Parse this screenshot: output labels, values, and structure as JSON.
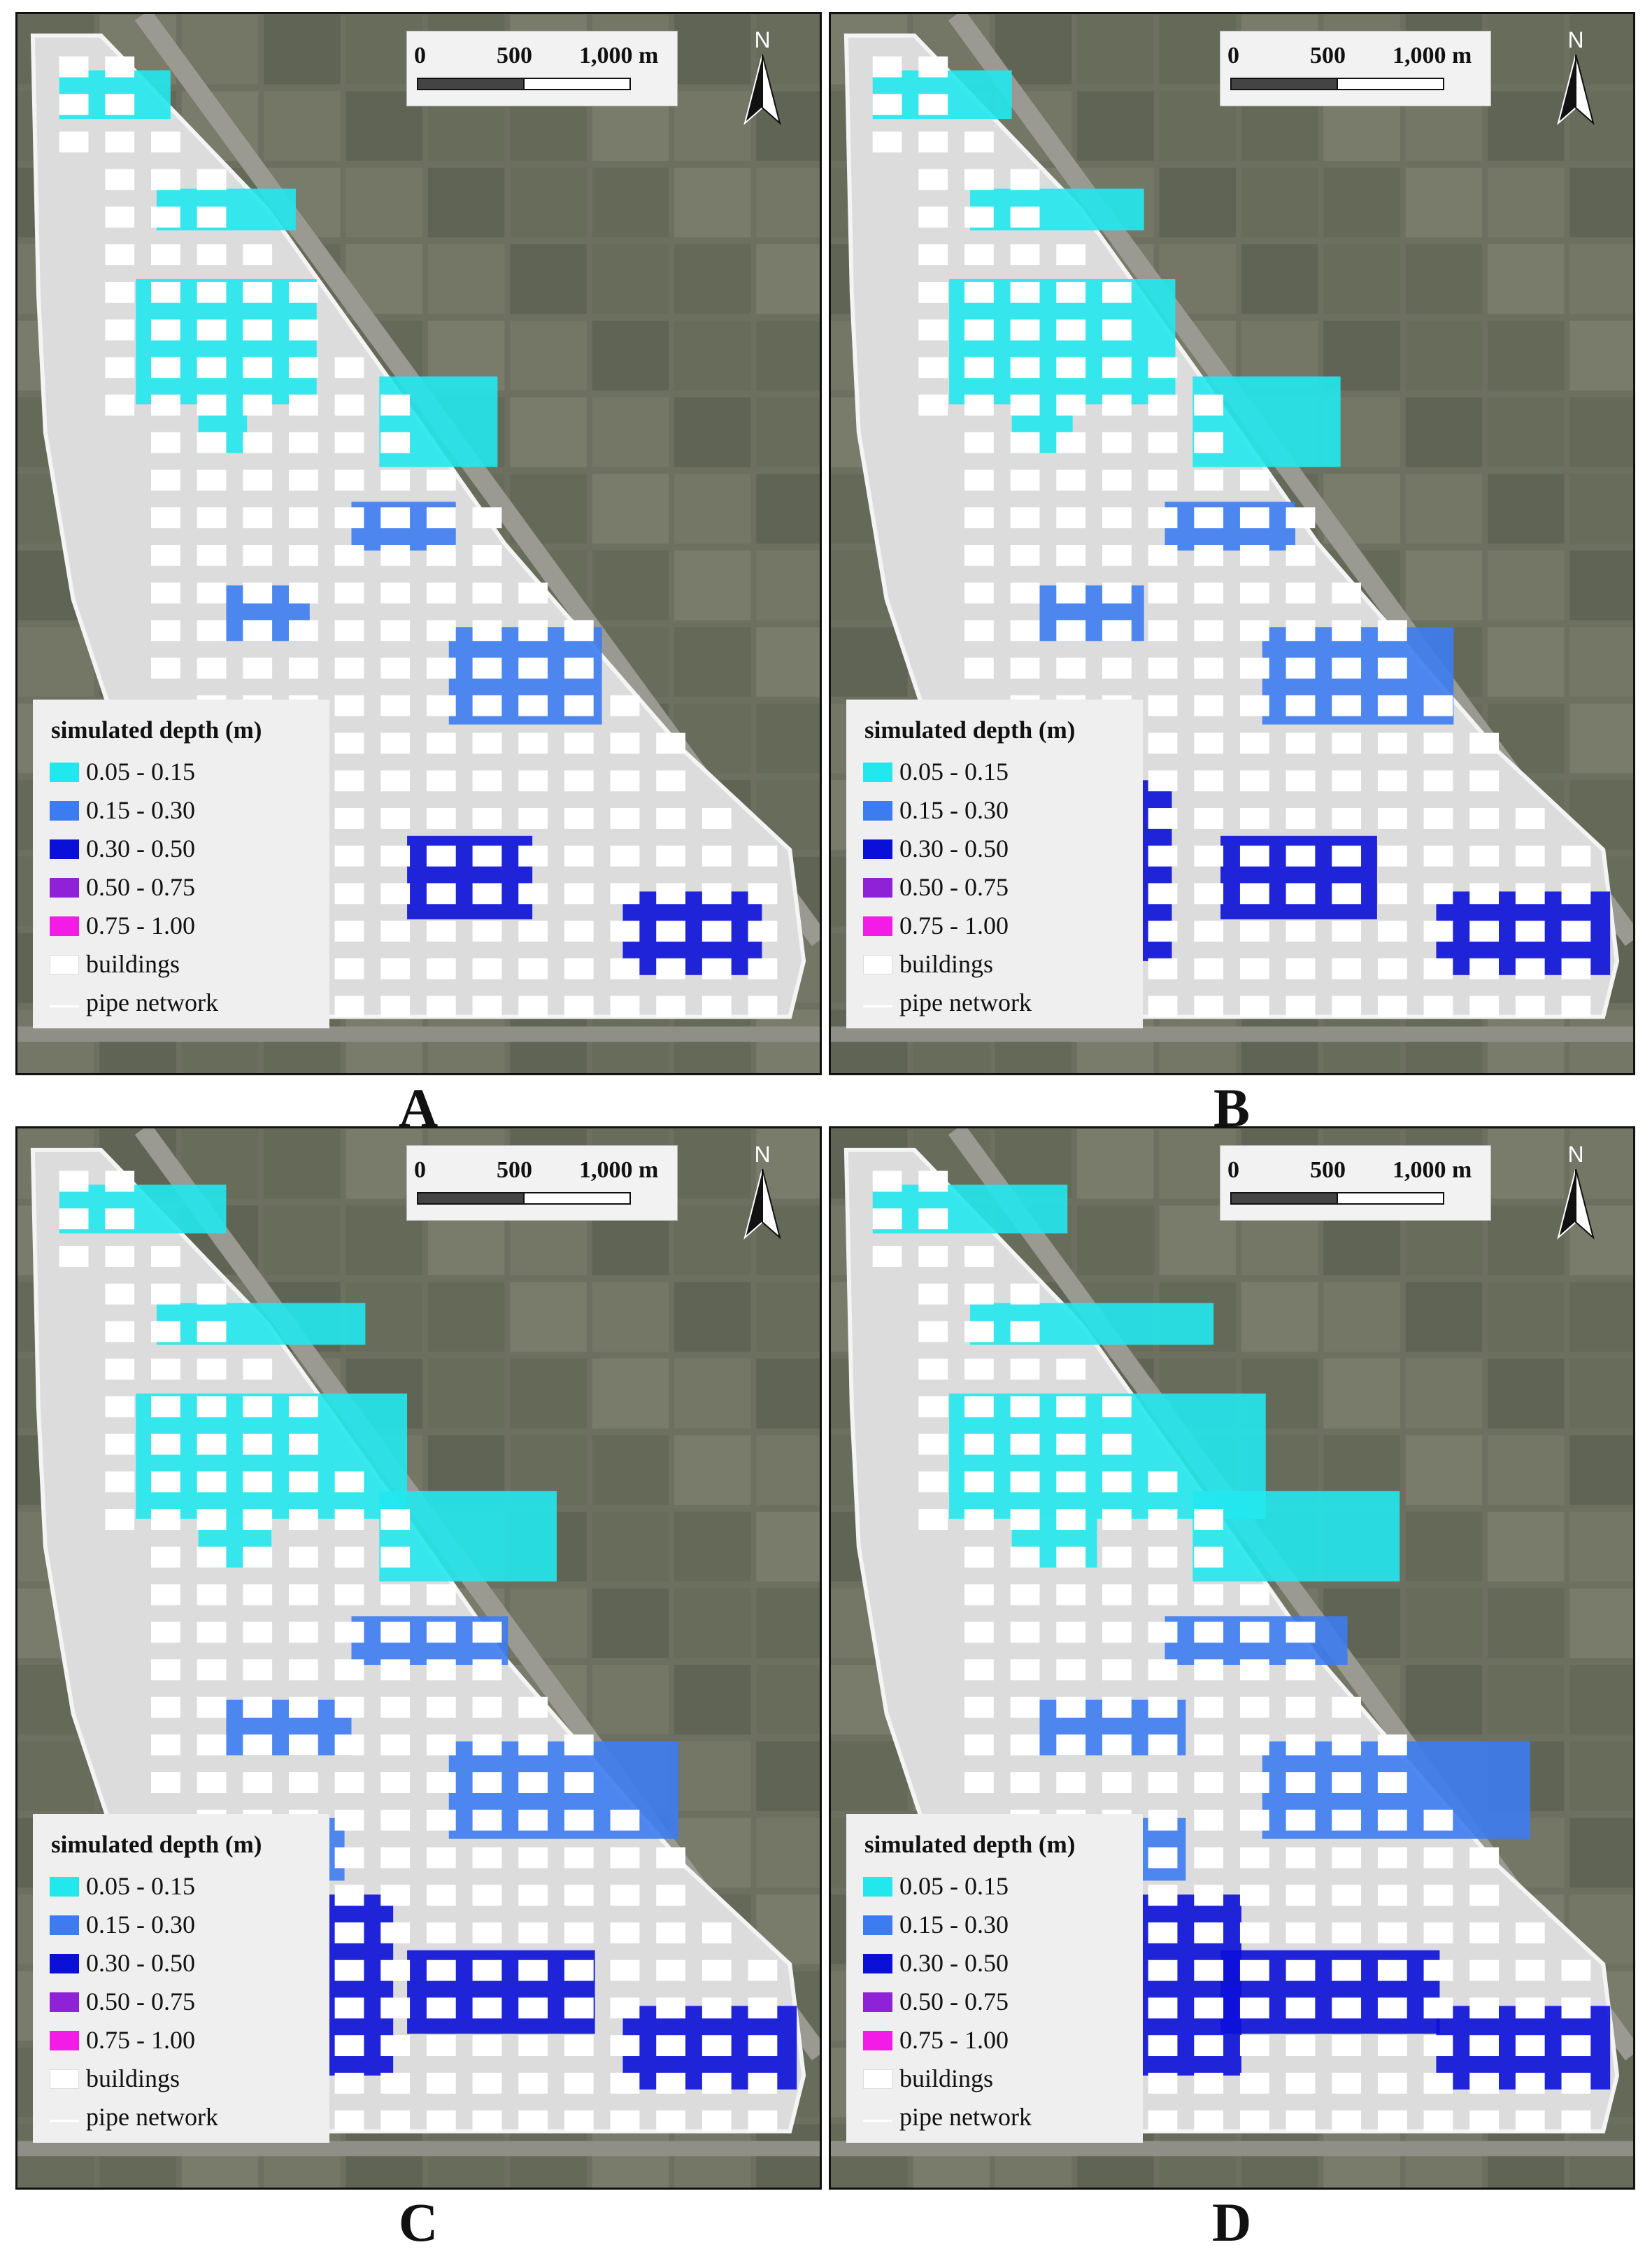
{
  "panels": [
    {
      "id": "A",
      "label": "A"
    },
    {
      "id": "B",
      "label": "B"
    },
    {
      "id": "C",
      "label": "C"
    },
    {
      "id": "D",
      "label": "D"
    }
  ],
  "scale_bar": {
    "labels": [
      "0",
      "500",
      "1,000 m"
    ]
  },
  "north_arrow": {
    "label": "N"
  },
  "legend": {
    "title": "simulated depth (m)",
    "items": [
      {
        "label": "0.05 - 0.15",
        "color": "#22e8ee"
      },
      {
        "label": "0.15 - 0.30",
        "color": "#3d7cf0"
      },
      {
        "label": "0.30 - 0.50",
        "color": "#0b10d8"
      },
      {
        "label": "0.50 - 0.75",
        "color": "#8f22d6"
      },
      {
        "label": "0.75 - 1.00",
        "color": "#f21ce6"
      },
      {
        "label": "buildings",
        "color": "#ffffff"
      },
      {
        "label": "pipe network",
        "color": "#ffffff"
      }
    ]
  },
  "colors": {
    "imagery": "#6d7060",
    "study_area": "#dcdcdc",
    "buildings": "#ffffff"
  }
}
